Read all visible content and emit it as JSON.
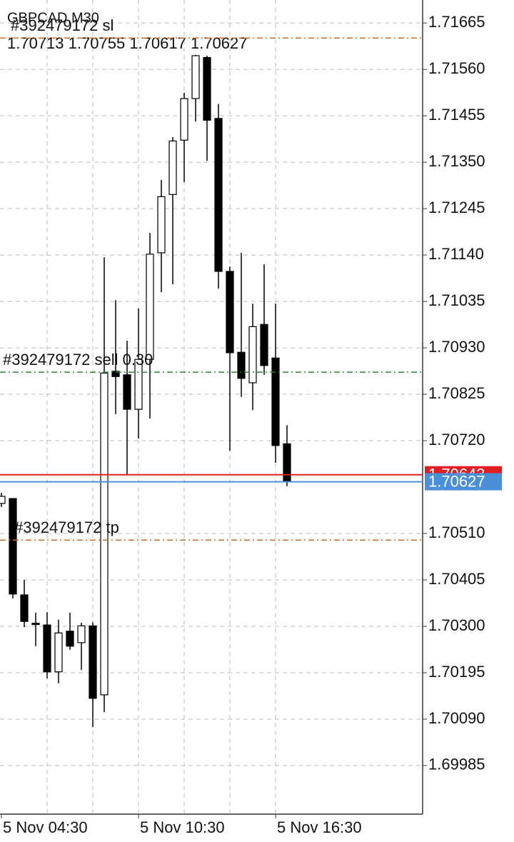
{
  "chart_data": {
    "type": "candlestick",
    "title": "GBPCAD,M30",
    "categories": [
      "5 Nov 04:30",
      null,
      null,
      null,
      null,
      null,
      null,
      null,
      null,
      null,
      null,
      null,
      "5 Nov 10:30",
      null,
      null,
      null,
      null,
      null,
      null,
      null,
      null,
      null,
      null,
      null,
      "5 Nov 16:30",
      null
    ],
    "open": [
      1.70578,
      1.70589,
      1.70371,
      1.70307,
      1.70303,
      1.70197,
      1.70289,
      1.70263,
      1.70301,
      1.70145,
      1.70877,
      1.70869,
      1.70791,
      1.70904,
      1.71145,
      1.71277,
      1.714,
      1.71494,
      1.71587,
      1.71449,
      1.71103,
      1.7092,
      1.70851,
      1.70983,
      1.70907,
      1.70713
    ],
    "high": [
      1.70602,
      1.70589,
      1.70405,
      1.70331,
      1.70332,
      1.70315,
      1.70331,
      1.70308,
      1.70309,
      1.71135,
      1.71038,
      1.70946,
      1.71019,
      1.7119,
      1.7131,
      1.71407,
      1.71507,
      1.71593,
      1.71591,
      1.71482,
      1.71114,
      1.71145,
      1.7103,
      1.71119,
      1.7103,
      1.70755
    ],
    "low": [
      1.7057,
      1.70363,
      1.70298,
      1.70255,
      1.70182,
      1.70171,
      1.70247,
      1.70201,
      1.70072,
      1.70106,
      1.7078,
      1.70642,
      1.70725,
      1.7077,
      1.71056,
      1.71074,
      1.71305,
      1.71442,
      1.71353,
      1.71064,
      1.70697,
      1.70819,
      1.70789,
      1.70869,
      1.7067,
      1.70617
    ],
    "close": [
      1.70594,
      1.70373,
      1.70311,
      1.70304,
      1.70197,
      1.70285,
      1.70255,
      1.70301,
      1.70137,
      1.70873,
      1.70865,
      1.70791,
      1.70904,
      1.71142,
      1.71272,
      1.71398,
      1.71494,
      1.71591,
      1.71445,
      1.71103,
      1.70919,
      1.70861,
      1.70978,
      1.7089,
      1.70709,
      1.70627
    ],
    "ylim": [
      1.69875,
      1.71717
    ],
    "yticks": [
      1.71665,
      {
        "value": 1.7156,
        "label": "1.71560"
      },
      1.71455,
      {
        "value": 1.7135,
        "label": "1.71350"
      },
      1.71245,
      {
        "value": 1.7114,
        "label": "1.71140"
      },
      1.71035,
      {
        "value": 1.7093,
        "label": "1.70930"
      },
      1.70825,
      {
        "value": 1.7072,
        "label": "1.70720"
      },
      {
        "value": 1.7051,
        "label": "1.70510"
      },
      1.70405,
      {
        "value": 1.703,
        "label": "1.70300"
      },
      1.70195,
      {
        "value": 1.7009,
        "label": "1.70090"
      },
      1.69985
    ],
    "grid": true,
    "levels": [
      {
        "label": "#392479172 sl",
        "value": 1.71631,
        "color": "#d2691e"
      },
      {
        "label": "#392479172 sell 0.30",
        "value": 1.70875,
        "color": "#2e7d32"
      },
      {
        "label": "#392479172 tp",
        "value": 1.70495,
        "color": "#d2691e"
      }
    ],
    "price_lines": [
      {
        "value": 1.70643,
        "color": "#e02020"
      },
      {
        "value": 1.70627,
        "color": "#4a90d9"
      }
    ]
  }
}
